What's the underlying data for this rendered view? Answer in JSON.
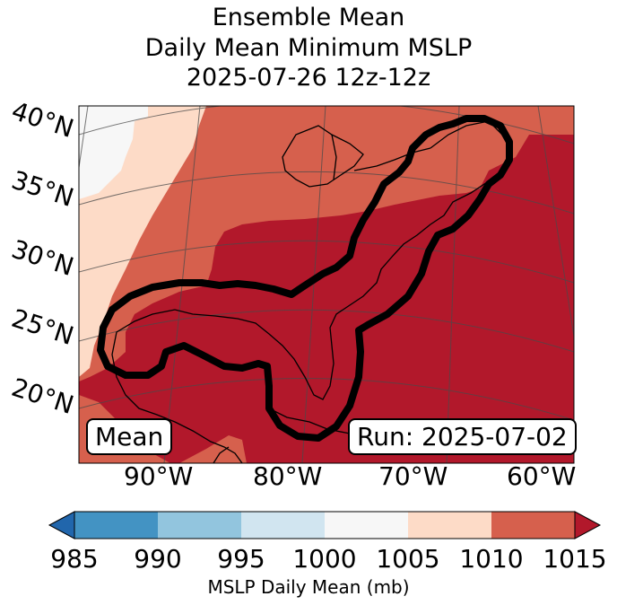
{
  "title": {
    "line1": "Ensemble Mean",
    "line2": "Daily Mean Minimum MSLP",
    "line3": "2025-07-26 12z-12z"
  },
  "map": {
    "lat_labels": [
      "40°N",
      "35°N",
      "30°N",
      "25°N",
      "20°N"
    ],
    "lon_labels": [
      "90°W",
      "80°W",
      "70°W",
      "60°W"
    ],
    "mean_box": "Mean",
    "run_box": "Run: 2025-07-02"
  },
  "colorbar": {
    "ticks": [
      "985",
      "990",
      "995",
      "1000",
      "1005",
      "1010",
      "1015"
    ],
    "label": "MSLP Daily Mean (mb)",
    "colors": [
      "#2166ac",
      "#4393c3",
      "#92c5de",
      "#d1e5f0",
      "#f7f7f7",
      "#fddbc7",
      "#d6604d",
      "#b2182b"
    ]
  }
}
